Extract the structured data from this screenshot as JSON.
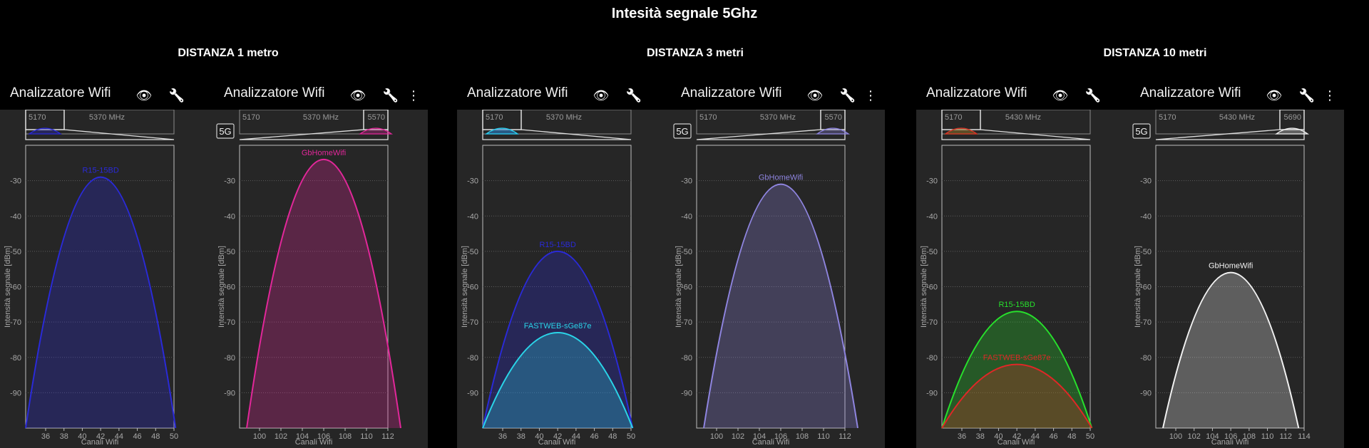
{
  "title": "Intesità segnale 5Ghz",
  "columns": [
    {
      "heading": "DISTANZA 1 metro"
    },
    {
      "heading": "DISTANZA 3 metri"
    },
    {
      "heading": "DISTANZA 10 metri"
    }
  ],
  "phones": [
    {
      "app_title": "Analizzatore Wifi",
      "band": "",
      "overview_left": "5170",
      "overview_mid": "5370 MHz",
      "overview_right": "",
      "ylabel": "Intensità segnale [dBm]",
      "xlabel": "Canali Wifi",
      "yticks": [
        -30,
        -40,
        -50,
        -60,
        -70,
        -80,
        -90
      ],
      "xticks": [
        "36",
        "38",
        "40",
        "42",
        "44",
        "46",
        "48",
        "50"
      ],
      "networks": [
        {
          "name": "R15-15BD",
          "peak": -29,
          "color": "#2a2ad8",
          "label_color": "#2a2ad8"
        }
      ]
    },
    {
      "app_title": "Analizzatore Wifi",
      "band": "5G",
      "overview_left": "5170",
      "overview_mid": "5370 MHz",
      "overview_right": "5570",
      "ylabel": "Intensità segnale [dBm]",
      "xlabel": "Canali Wifi",
      "yticks": [
        -30,
        -40,
        -50,
        -60,
        -70,
        -80,
        -90
      ],
      "xticks": [
        "100",
        "102",
        "104",
        "106",
        "108",
        "110",
        "112"
      ],
      "networks": [
        {
          "name": "GbHomeWifi",
          "peak": -24,
          "color": "#e2279a",
          "label_color": "#e2279a"
        }
      ]
    },
    {
      "app_title": "Analizzatore Wifi",
      "band": "",
      "overview_left": "5170",
      "overview_mid": "5370 MHz",
      "overview_right": "",
      "ylabel": "Intensità segnale [dBm]",
      "xlabel": "Canali Wifi",
      "yticks": [
        -30,
        -40,
        -50,
        -60,
        -70,
        -80,
        -90
      ],
      "xticks": [
        "36",
        "38",
        "40",
        "42",
        "44",
        "46",
        "48",
        "50"
      ],
      "networks": [
        {
          "name": "R15-15BD",
          "peak": -50,
          "color": "#2a2ad8",
          "label_color": "#2a2ad8"
        },
        {
          "name": "FASTWEB-sGe87e",
          "peak": -73,
          "color": "#2ad4e8",
          "label_color": "#2ad4e8"
        }
      ]
    },
    {
      "app_title": "Analizzatore Wifi",
      "band": "5G",
      "overview_left": "5170",
      "overview_mid": "5370 MHz",
      "overview_right": "5570",
      "ylabel": "Intensità segnale [dBm]",
      "xlabel": "Canali Wifi",
      "yticks": [
        -30,
        -40,
        -50,
        -60,
        -70,
        -80,
        -90
      ],
      "xticks": [
        "100",
        "102",
        "104",
        "106",
        "108",
        "110",
        "112"
      ],
      "networks": [
        {
          "name": "GbHomeWifi",
          "peak": -31,
          "color": "#8f85e0",
          "label_color": "#8f85e0"
        }
      ]
    },
    {
      "app_title": "Analizzatore Wifi",
      "band": "",
      "overview_left": "5170",
      "overview_mid": "5430 MHz",
      "overview_right": "",
      "ylabel": "Intensità segnale [dBm]",
      "xlabel": "Canali Wifi",
      "yticks": [
        -30,
        -40,
        -50,
        -60,
        -70,
        -80,
        -90
      ],
      "xticks": [
        "36",
        "38",
        "40",
        "42",
        "44",
        "46",
        "48",
        "50"
      ],
      "networks": [
        {
          "name": "R15-15BD",
          "peak": -67,
          "color": "#27e02c",
          "label_color": "#27e02c"
        },
        {
          "name": "FASTWEB-sGe87e",
          "peak": -82,
          "color": "#e02727",
          "label_color": "#e02727"
        }
      ]
    },
    {
      "app_title": "Analizzatore Wifi",
      "band": "5G",
      "overview_left": "5170",
      "overview_mid": "5430 MHz",
      "overview_right": "5690",
      "ylabel": "Intensità segnale [dBm]",
      "xlabel": "Canali Wifi",
      "yticks": [
        -30,
        -40,
        -50,
        -60,
        -70,
        -80,
        -90
      ],
      "xticks": [
        "100",
        "102",
        "104",
        "106",
        "108",
        "110",
        "112",
        "114"
      ],
      "networks": [
        {
          "name": "GbHomeWifi",
          "peak": -56,
          "color": "#f2f2f2",
          "label_color": "#f2f2f2"
        }
      ]
    }
  ],
  "icons": {
    "view": "eye-icon",
    "tools": "wrench-icon",
    "menu": "more-vert-icon"
  }
}
